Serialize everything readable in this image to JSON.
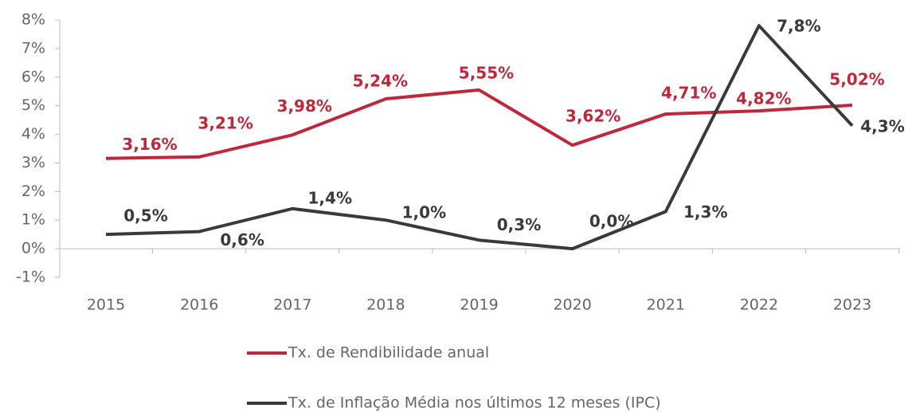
{
  "chart_data": {
    "type": "line",
    "categories": [
      "2015",
      "2016",
      "2017",
      "2018",
      "2019",
      "2020",
      "2021",
      "2022",
      "2023"
    ],
    "series": [
      {
        "name": "Tx. de Rendibilidade anual",
        "color": "#c0273a",
        "values": [
          3.16,
          3.21,
          3.98,
          5.24,
          5.55,
          3.62,
          4.71,
          4.82,
          5.02
        ],
        "value_labels": [
          "3,16%",
          "3,21%",
          "3,98%",
          "5,24%",
          "5,55%",
          "3,62%",
          "4,71%",
          "4,82%",
          "5,02%"
        ]
      },
      {
        "name": "Tx. de Inflação Média nos últimos 12 meses (IPC)",
        "color": "#3a3a3c",
        "values": [
          0.5,
          0.6,
          1.4,
          1.0,
          0.3,
          0.0,
          1.3,
          7.8,
          4.3
        ],
        "value_labels": [
          "0,5%",
          "0,6%",
          "1,4%",
          "1,0%",
          "0,3%",
          "0,0%",
          "1,3%",
          "7,8%",
          "4,3%"
        ]
      }
    ],
    "ylim": [
      -1,
      8
    ],
    "yticks": [
      {
        "value": -1,
        "label": "-1%"
      },
      {
        "value": 0,
        "label": "0%"
      },
      {
        "value": 1,
        "label": "1%"
      },
      {
        "value": 2,
        "label": "2%"
      },
      {
        "value": 3,
        "label": "3%"
      },
      {
        "value": 4,
        "label": "4%"
      },
      {
        "value": 5,
        "label": "5%"
      },
      {
        "value": 6,
        "label": "6%"
      },
      {
        "value": 7,
        "label": "7%"
      },
      {
        "value": 8,
        "label": "8%"
      }
    ],
    "legend": "bottom"
  }
}
